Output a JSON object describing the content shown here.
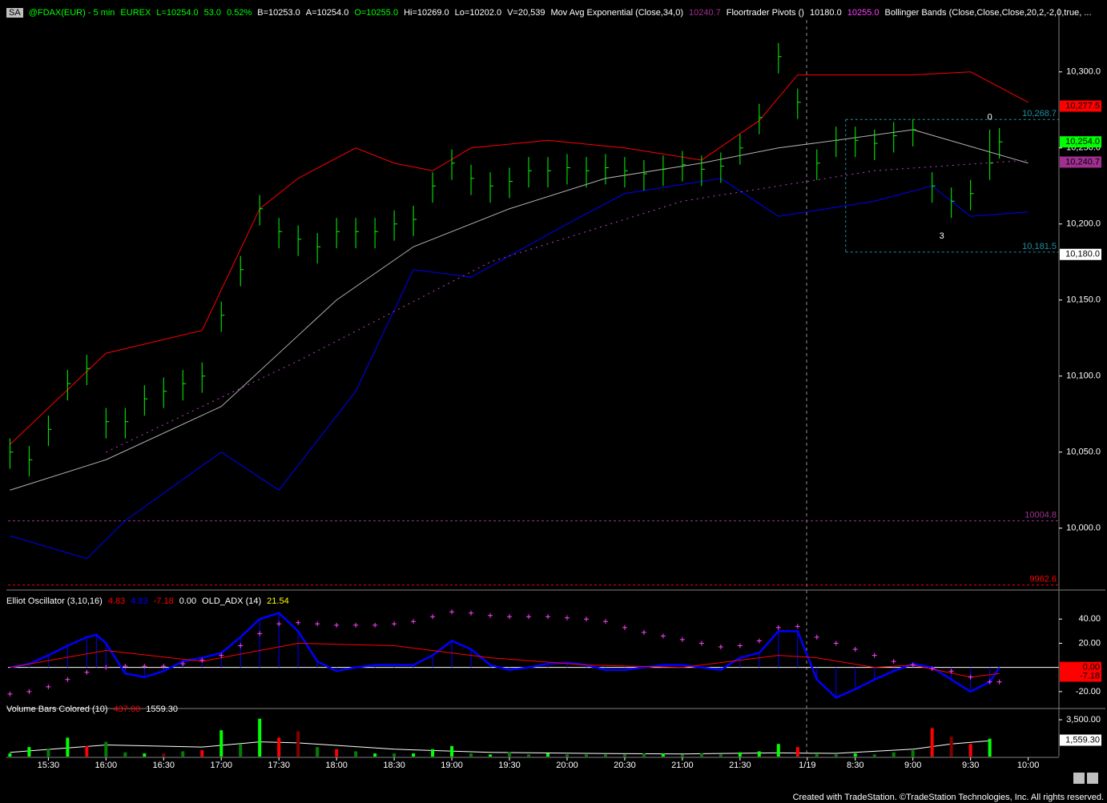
{
  "header": {
    "box": "SA",
    "items": [
      {
        "text": "@FDAX(EUR) - 5 min",
        "color": "#00ff00"
      },
      {
        "text": "EUREX",
        "color": "#00ff00"
      },
      {
        "text": "L=10254.0",
        "color": "#00ff00"
      },
      {
        "text": "53.0",
        "color": "#00ff00"
      },
      {
        "text": "0.52%",
        "color": "#00ff00"
      },
      {
        "text": "B=10253.0",
        "color": "#ffffff"
      },
      {
        "text": "A=10254.0",
        "color": "#ffffff"
      },
      {
        "text": "O=10255.0",
        "color": "#00ff00"
      },
      {
        "text": "Hi=10269.0",
        "color": "#ffffff"
      },
      {
        "text": "Lo=10202.0",
        "color": "#ffffff"
      },
      {
        "text": "V=20,539",
        "color": "#ffffff"
      },
      {
        "text": "Mov Avg Exponential (Close,34,0)",
        "color": "#ffffff"
      },
      {
        "text": "10240.7",
        "color": "#a03090"
      },
      {
        "text": "Floortrader Pivots ()",
        "color": "#ffffff"
      },
      {
        "text": "10180.0",
        "color": "#ffffff"
      },
      {
        "text": "10255.0",
        "color": "#ff40ff"
      },
      {
        "text": "Bollinger Bands (Close,Close,Close,20,2,-2,0,true, ...",
        "color": "#ffffff"
      }
    ]
  },
  "chart_data": [
    {
      "type": "ohlc",
      "color": "#00ff00",
      "xlim": [
        -0.2,
        109.2
      ],
      "ylim": [
        9963,
        10342
      ],
      "yticks": [
        {
          "value": 10000,
          "label": "10,000.0"
        },
        {
          "value": 10050,
          "label": "10,050.0"
        },
        {
          "value": 10100,
          "label": "10,100.0"
        },
        {
          "value": 10150,
          "label": "10,150.0"
        },
        {
          "value": 10200,
          "label": "10,200.0"
        },
        {
          "value": 10250,
          "label": "10,250.0"
        },
        {
          "value": 10300,
          "label": "10,300.0"
        }
      ],
      "x": [
        0,
        2,
        4,
        6,
        8,
        10,
        12,
        14,
        16,
        18,
        20,
        22,
        24,
        26,
        28,
        30,
        32,
        34,
        36,
        38,
        40,
        42,
        44,
        46,
        48,
        50,
        52,
        54,
        56,
        58,
        60,
        62,
        64,
        66,
        68,
        70,
        72,
        74,
        76,
        78,
        80,
        82,
        84,
        86,
        88,
        90,
        92,
        94,
        96,
        98,
        100,
        102,
        103
      ],
      "high": [
        10059,
        10054,
        10074,
        10104,
        10114,
        10079,
        10079,
        10094,
        10099,
        10104,
        10109,
        10149,
        10179,
        10219,
        10204,
        10199,
        10194,
        10204,
        10204,
        10204,
        10209,
        10212,
        10234,
        10249,
        10239,
        10234,
        10237,
        10244,
        10244,
        10246,
        10244,
        10246,
        10244,
        10242,
        10245,
        10248,
        10245,
        10247,
        10259,
        10279,
        10319,
        10289,
        10249,
        10264,
        10264,
        10262,
        10267,
        10269,
        10234,
        10224,
        10229,
        10262,
        10263
      ],
      "low": [
        10039,
        10034,
        10054,
        10084,
        10094,
        10059,
        10059,
        10074,
        10079,
        10084,
        10089,
        10129,
        10159,
        10199,
        10184,
        10179,
        10174,
        10184,
        10184,
        10184,
        10189,
        10192,
        10214,
        10229,
        10219,
        10214,
        10217,
        10224,
        10224,
        10226,
        10224,
        10226,
        10224,
        10222,
        10225,
        10228,
        10225,
        10227,
        10239,
        10259,
        10299,
        10269,
        10229,
        10244,
        10244,
        10242,
        10247,
        10251,
        10214,
        10204,
        10209,
        10229,
        10243
      ],
      "close": [
        10050,
        10045,
        10065,
        10095,
        10105,
        10070,
        10070,
        10085,
        10090,
        10095,
        10100,
        10140,
        10170,
        10210,
        10195,
        10190,
        10185,
        10195,
        10195,
        10195,
        10200,
        10203,
        10225,
        10240,
        10230,
        10225,
        10228,
        10235,
        10235,
        10237,
        10235,
        10237,
        10235,
        10233,
        10236,
        10239,
        10236,
        10238,
        10250,
        10270,
        10310,
        10280,
        10240,
        10255,
        10255,
        10253,
        10258,
        10262,
        10225,
        10215,
        10220,
        10240,
        10254
      ],
      "series": [
        {
          "color": "#ff0000",
          "x": [
            0,
            10,
            20,
            26,
            30,
            36,
            40,
            44,
            48,
            56,
            64,
            72,
            78,
            82,
            94,
            100,
            106
          ],
          "values": [
            10055,
            10115,
            10130,
            10210,
            10230,
            10250,
            10240,
            10235,
            10250,
            10255,
            10250,
            10242,
            10268,
            10298,
            10298,
            10300,
            10280
          ]
        },
        {
          "color": "#0000ff",
          "x": [
            0,
            8,
            12,
            22,
            28,
            36,
            42,
            48,
            58,
            64,
            74,
            80,
            90,
            96,
            100,
            106
          ],
          "values": [
            9995,
            9980,
            10005,
            10050,
            10025,
            10090,
            10170,
            10165,
            10200,
            10220,
            10230,
            10205,
            10215,
            10225,
            10205,
            10208
          ]
        },
        {
          "color": "#b0b0b0",
          "x": [
            0,
            10,
            22,
            34,
            42,
            52,
            62,
            72,
            80,
            86,
            94,
            106
          ],
          "values": [
            10025,
            10045,
            10080,
            10150,
            10185,
            10210,
            10230,
            10240,
            10250,
            10255,
            10262,
            10240
          ]
        },
        {
          "color": "#c040c0",
          "dash": true,
          "x": [
            10,
            30,
            50,
            70,
            90,
            106
          ],
          "values": [
            10050,
            10110,
            10175,
            10215,
            10235,
            10242
          ]
        }
      ],
      "levels": [
        {
          "value": 10004.8,
          "color": "#a03090",
          "x_start": -0.2
        },
        {
          "value": 9962.6,
          "color": "#ff0000",
          "x_start": -0.2
        },
        {
          "value": 10268.7,
          "label": "10,268.7",
          "color": "#2090a0",
          "x_start": 87
        },
        {
          "value": 10181.5,
          "label": "10,181.5",
          "color": "#2090a0",
          "x_start": 87
        }
      ],
      "tags": [
        {
          "value": 10277.5,
          "label": "10,277.5",
          "color": "#ff0000"
        },
        {
          "value": 10254,
          "label": "10,254.0",
          "color": "#00ff00"
        },
        {
          "value": 10240.7,
          "label": "10,240.7",
          "color": "#a03090"
        },
        {
          "value": 10180,
          "label": "10,180.0",
          "color": "#ffffff"
        }
      ],
      "annotations": [
        {
          "text": "0",
          "x": 102,
          "y": 10270
        },
        {
          "text": "3",
          "x": 97,
          "y": 10192
        }
      ]
    },
    {
      "type": "oscillator",
      "xlim": [
        -0.2,
        109.2
      ],
      "ylim": [
        -32,
        60.7
      ],
      "title": "Elliot Oscillator (3,10,16)",
      "readings": [
        {
          "text": "4.83",
          "color": "#ff0000"
        },
        {
          "text": "4.83",
          "color": "#0000ff"
        },
        {
          "text": "-7.18",
          "color": "#ff0000"
        },
        {
          "text": "0.00",
          "color": "#ffffff"
        },
        {
          "text": "OLD_ADX (14)",
          "color": "#ffffff"
        },
        {
          "text": "21.54",
          "color": "#ffff00"
        }
      ],
      "yticks": [
        {
          "value": 40,
          "label": "40.00"
        },
        {
          "value": 20,
          "label": "20.00"
        },
        {
          "value": -20,
          "label": "-20.00"
        }
      ],
      "tags": [
        {
          "value": 0,
          "label": "0.00",
          "color": "#ff0000"
        },
        {
          "value": -7.18,
          "label": "-7.18",
          "color": "#ff0000"
        }
      ],
      "series": [
        {
          "color": "#0000ff",
          "histogram": true,
          "x": [
            0,
            2,
            4,
            6,
            8,
            9,
            10,
            12,
            14,
            16,
            18,
            20,
            22,
            24,
            26,
            28,
            30,
            32,
            34,
            36,
            38,
            40,
            42,
            44,
            46,
            48,
            50,
            52,
            54,
            56,
            58,
            60,
            62,
            64,
            66,
            68,
            70,
            72,
            74,
            76,
            78,
            80,
            82,
            84,
            86,
            88,
            90,
            92,
            94,
            96,
            98,
            100,
            102,
            103
          ],
          "values": [
            0,
            3,
            10,
            18,
            25,
            27,
            20,
            -5,
            -8,
            -3,
            5,
            8,
            12,
            25,
            40,
            45,
            30,
            5,
            -3,
            0,
            2,
            2,
            2,
            10,
            22,
            15,
            2,
            -2,
            0,
            3,
            4,
            2,
            -2,
            -2,
            0,
            2,
            2,
            0,
            -2,
            8,
            12,
            30,
            30,
            -10,
            -25,
            -18,
            -10,
            -3,
            3,
            0,
            -10,
            -20,
            -12,
            0
          ]
        },
        {
          "color": "#ff0000",
          "x": [
            0,
            10,
            20,
            30,
            40,
            50,
            60,
            70,
            80,
            84,
            90,
            94,
            100,
            103
          ],
          "values": [
            0,
            14,
            5,
            20,
            18,
            8,
            2,
            0,
            10,
            8,
            0,
            2,
            -8,
            -5
          ]
        },
        {
          "color": "#ff40ff",
          "cross": true,
          "x": [
            0,
            2,
            4,
            6,
            8,
            10,
            12,
            14,
            16,
            18,
            20,
            22,
            24,
            26,
            28,
            30,
            32,
            34,
            36,
            38,
            40,
            42,
            44,
            46,
            48,
            50,
            52,
            54,
            56,
            58,
            60,
            62,
            64,
            66,
            68,
            70,
            72,
            74,
            76,
            78,
            80,
            82,
            84,
            86,
            88,
            90,
            92,
            94,
            96,
            98,
            100,
            102,
            103
          ],
          "values": [
            -22,
            -20,
            -16,
            -10,
            -4,
            0,
            1,
            1,
            1,
            3,
            6,
            10,
            18,
            28,
            36,
            37,
            36,
            35,
            35,
            35,
            36,
            38,
            42,
            46,
            45,
            43,
            42,
            42,
            42,
            41,
            40,
            38,
            33,
            29,
            26,
            23,
            20,
            17,
            18,
            22,
            33,
            34,
            25,
            20,
            15,
            10,
            5,
            2,
            -1,
            -3,
            -8,
            -12,
            -12
          ]
        }
      ]
    },
    {
      "type": "volume",
      "xlim": [
        -0.2,
        109.2
      ],
      "ylim": [
        0,
        4340
      ],
      "title": "Volume Bars Colored (10)",
      "readings": [
        {
          "text": "437.00",
          "color": "#ff0000"
        },
        {
          "text": "1559.30",
          "color": "#ffffff"
        }
      ],
      "yticks": [
        {
          "value": 3500,
          "label": "3,500.00"
        }
      ],
      "tags": [
        {
          "value": 1559.3,
          "label": "1,559.30",
          "color": "#ffffff"
        }
      ],
      "xticks": [
        {
          "value": 4,
          "label": "15:30"
        },
        {
          "value": 10,
          "label": "16:00"
        },
        {
          "value": 16,
          "label": "16:30"
        },
        {
          "value": 22,
          "label": "17:00"
        },
        {
          "value": 28,
          "label": "17:30"
        },
        {
          "value": 34,
          "label": "18:00"
        },
        {
          "value": 40,
          "label": "18:30"
        },
        {
          "value": 46,
          "label": "19:00"
        },
        {
          "value": 52,
          "label": "19:30"
        },
        {
          "value": 58,
          "label": "20:00"
        },
        {
          "value": 64,
          "label": "20:30"
        },
        {
          "value": 70,
          "label": "21:00"
        },
        {
          "value": 76,
          "label": "21:30"
        },
        {
          "value": 83,
          "label": "1/19"
        },
        {
          "value": 88,
          "label": "8:30"
        },
        {
          "value": 94,
          "label": "9:00"
        },
        {
          "value": 100,
          "label": "9:30"
        },
        {
          "value": 106,
          "label": "10:00"
        }
      ],
      "x": [
        0,
        2,
        4,
        6,
        8,
        10,
        12,
        14,
        16,
        18,
        20,
        22,
        24,
        26,
        28,
        30,
        32,
        34,
        36,
        38,
        40,
        42,
        44,
        46,
        48,
        50,
        52,
        54,
        56,
        58,
        60,
        62,
        64,
        66,
        68,
        70,
        72,
        74,
        76,
        78,
        80,
        82,
        84,
        86,
        88,
        90,
        92,
        94,
        96,
        98,
        100,
        102
      ],
      "values": [
        300,
        900,
        700,
        1800,
        1000,
        1400,
        400,
        300,
        300,
        500,
        600,
        2500,
        1200,
        3600,
        1800,
        2400,
        900,
        700,
        500,
        300,
        300,
        300,
        700,
        1000,
        300,
        200,
        400,
        200,
        300,
        200,
        200,
        200,
        200,
        300,
        300,
        200,
        300,
        200,
        400,
        500,
        1200,
        900,
        300,
        200,
        300,
        200,
        400,
        600,
        2700,
        1900,
        1200,
        1700
      ],
      "colors": [
        "#00ff00",
        "#00ff00",
        "#008000",
        "#00ff00",
        "#ff0000",
        "#008000",
        "#008000",
        "#00ff00",
        "#800000",
        "#008000",
        "#ff0000",
        "#00ff00",
        "#008000",
        "#00ff00",
        "#ff0000",
        "#800000",
        "#008000",
        "#ff0000",
        "#008000",
        "#00ff00",
        "#008000",
        "#00ff00",
        "#00ff00",
        "#00ff00",
        "#008000",
        "#00ff00",
        "#008000",
        "#008000",
        "#00ff00",
        "#008000",
        "#008000",
        "#008000",
        "#008000",
        "#008000",
        "#00ff00",
        "#008000",
        "#008000",
        "#008000",
        "#00ff00",
        "#00ff00",
        "#00ff00",
        "#ff0000",
        "#008000",
        "#008000",
        "#00ff00",
        "#008000",
        "#008000",
        "#008000",
        "#ff0000",
        "#800000",
        "#ff0000",
        "#00ff00"
      ],
      "series": [
        {
          "color": "#ffffff",
          "x": [
            0,
            10,
            20,
            26,
            30,
            40,
            50,
            60,
            70,
            80,
            86,
            94,
            98,
            102
          ],
          "values": [
            400,
            1100,
            900,
            1400,
            1300,
            700,
            400,
            300,
            250,
            350,
            300,
            700,
            1200,
            1500
          ]
        }
      ]
    }
  ],
  "footer": "Created with TradeStation. ©TradeStation Technologies, Inc. All rights reserved."
}
